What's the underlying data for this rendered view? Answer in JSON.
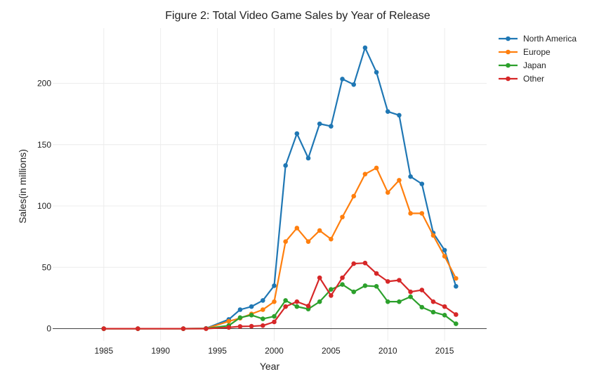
{
  "chart_data": {
    "type": "line",
    "title": "Figure 2: Total Video Game Sales by Year of Release",
    "xlabel": "Year",
    "ylabel": "Sales(in millions)",
    "xlim": [
      1980.5,
      2018.7
    ],
    "ylim": [
      -10,
      245
    ],
    "x_ticks": [
      1985,
      1990,
      1995,
      2000,
      2005,
      2010,
      2015
    ],
    "y_ticks": [
      0,
      50,
      100,
      150,
      200
    ],
    "grid": true,
    "legend_position": "top-right",
    "series": [
      {
        "name": "North America",
        "color": "#1f77b4",
        "x": [
          1985,
          1988,
          1992,
          1994,
          1996,
          1997,
          1998,
          1999,
          2000,
          2001,
          2002,
          2003,
          2004,
          2005,
          2006,
          2007,
          2008,
          2009,
          2010,
          2011,
          2012,
          2013,
          2014,
          2015,
          2016
        ],
        "y": [
          0,
          0,
          0,
          0.2,
          7.5,
          15.5,
          18,
          23,
          35,
          133,
          159,
          139,
          167,
          165,
          203.5,
          199,
          229,
          209,
          177,
          174,
          124,
          118,
          78,
          64,
          34.5
        ]
      },
      {
        "name": "Europe",
        "color": "#ff7f0e",
        "x": [
          1985,
          1988,
          1992,
          1994,
          1996,
          1997,
          1998,
          1999,
          2000,
          2001,
          2002,
          2003,
          2004,
          2005,
          2006,
          2007,
          2008,
          2009,
          2010,
          2011,
          2012,
          2013,
          2014,
          2015,
          2016
        ],
        "y": [
          0,
          0,
          0,
          0.1,
          6,
          8.5,
          12,
          15.5,
          22,
          71,
          82,
          71,
          80,
          73,
          91,
          108,
          126,
          131,
          111,
          121,
          94,
          94,
          76,
          59,
          41
        ]
      },
      {
        "name": "Japan",
        "color": "#2ca02c",
        "x": [
          1985,
          1988,
          1992,
          1994,
          1996,
          1997,
          1998,
          1999,
          2000,
          2001,
          2002,
          2003,
          2004,
          2005,
          2006,
          2007,
          2008,
          2009,
          2010,
          2011,
          2012,
          2013,
          2014,
          2015,
          2016
        ],
        "y": [
          0,
          0,
          0,
          0.1,
          2.5,
          9,
          11,
          8,
          10,
          23,
          18,
          16,
          22,
          32,
          36,
          30,
          35,
          34.5,
          22,
          22,
          26,
          17.5,
          13.5,
          11,
          4
        ]
      },
      {
        "name": "Other",
        "color": "#d62728",
        "x": [
          1985,
          1988,
          1992,
          1994,
          1996,
          1997,
          1998,
          1999,
          2000,
          2001,
          2002,
          2003,
          2004,
          2005,
          2006,
          2007,
          2008,
          2009,
          2010,
          2011,
          2012,
          2013,
          2014,
          2015,
          2016
        ],
        "y": [
          0,
          0,
          0,
          0,
          1,
          1.8,
          2,
          2.5,
          5.5,
          18,
          22,
          18.5,
          41.5,
          27,
          41.5,
          53,
          53.5,
          45,
          38.5,
          39.5,
          30,
          31.5,
          22,
          18,
          11.5
        ]
      }
    ]
  }
}
